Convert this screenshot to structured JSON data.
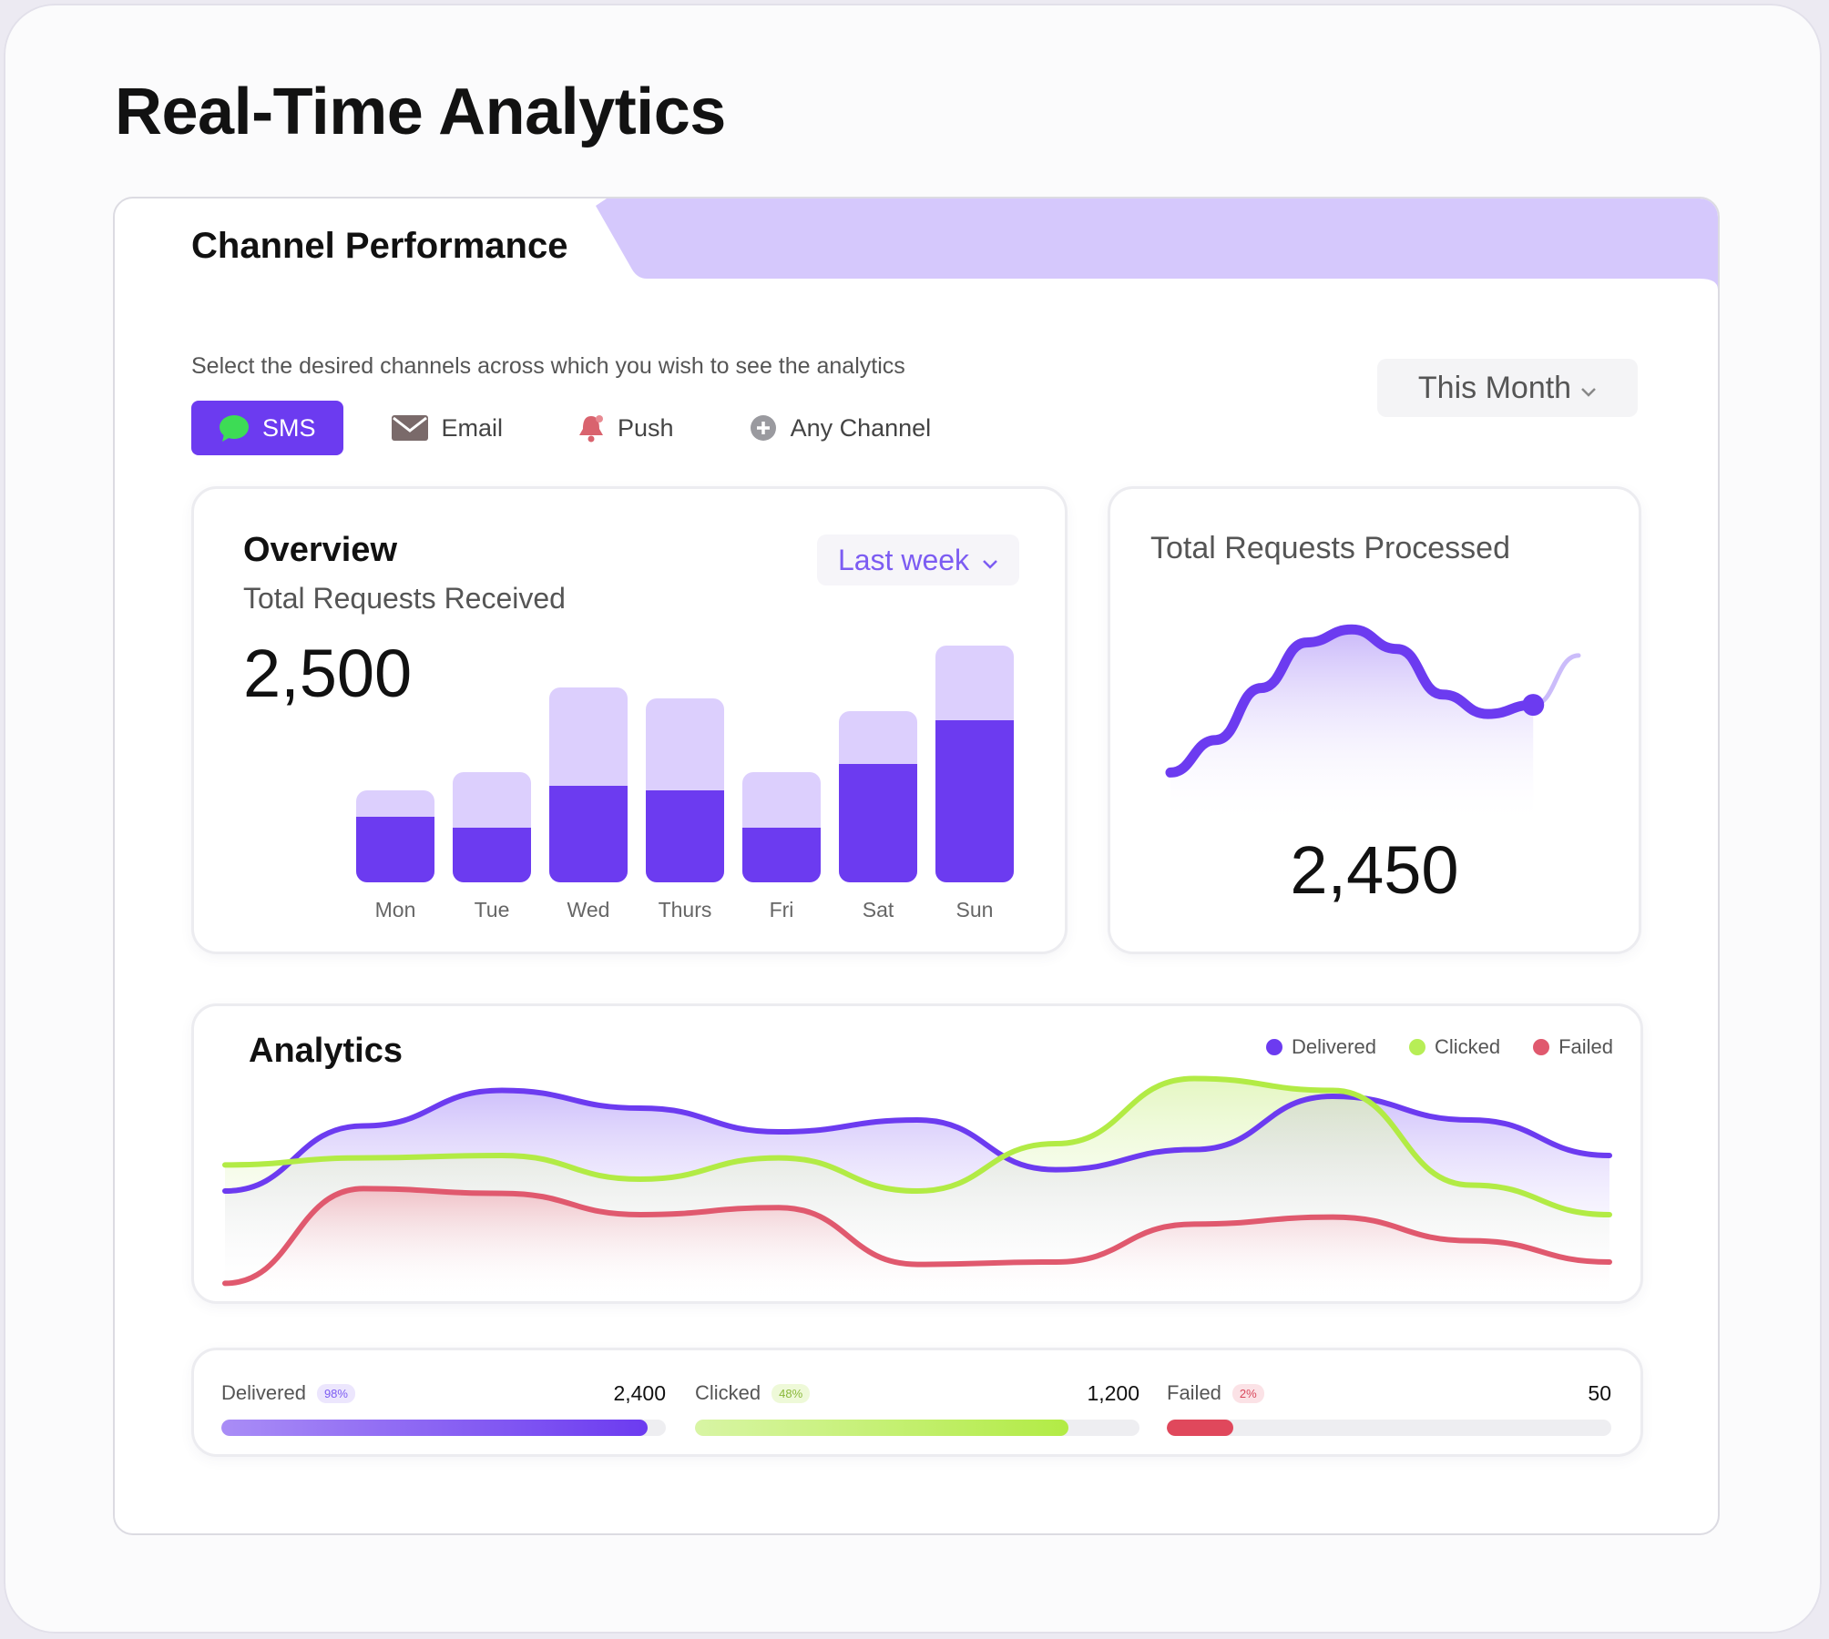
{
  "page_title": "Real-Time Analytics",
  "panel": {
    "tab_title": "Channel Performance",
    "subtitle": "Select the desired channels across which you wish to see the analytics",
    "period_label": "This Month"
  },
  "channels": [
    {
      "label": "SMS",
      "icon": "chat-bubble-icon",
      "active": true
    },
    {
      "label": "Email",
      "icon": "envelope-icon",
      "active": false
    },
    {
      "label": "Push",
      "icon": "bell-icon",
      "active": false
    },
    {
      "label": "Any Channel",
      "icon": "plus-circle-icon",
      "active": false
    }
  ],
  "overview": {
    "title": "Overview",
    "subtitle": "Total Requests Received",
    "total": "2,500",
    "range_label": "Last week"
  },
  "processed": {
    "title": "Total Requests Processed",
    "total": "2,450"
  },
  "analytics": {
    "title": "Analytics",
    "legend": [
      "Delivered",
      "Clicked",
      "Failed"
    ]
  },
  "stats": [
    {
      "label": "Delivered",
      "percent": "98%",
      "value": "2,400"
    },
    {
      "label": "Clicked",
      "percent": "48%",
      "value": "1,200"
    },
    {
      "label": "Failed",
      "percent": "2%",
      "value": "50"
    }
  ],
  "colors": {
    "accent": "#6c3bf0",
    "accent_light": "#dccffd",
    "tab": "#d5c8fc",
    "clicked": "#b7ee56",
    "failed": "#e0596e"
  },
  "chart_data": [
    {
      "type": "bar",
      "categories": [
        "Mon",
        "Tue",
        "Wed",
        "Thurs",
        "Fri",
        "Sat",
        "Sun"
      ],
      "series": [
        {
          "values": [
            72,
            60,
            106,
            101,
            60,
            130,
            178
          ]
        },
        {
          "values": [
            101,
            121,
            214,
            202,
            121,
            188,
            260
          ]
        }
      ],
      "ylim": [
        0,
        260
      ]
    },
    {
      "type": "line",
      "x": [
        0,
        1,
        2,
        3,
        4,
        5,
        6,
        7,
        8,
        9
      ],
      "series": [
        {
          "values": [
            20,
            45,
            85,
            120,
            130,
            115,
            80,
            65,
            72,
            110
          ]
        }
      ],
      "ylim": [
        0,
        140
      ]
    },
    {
      "type": "area",
      "x": [
        0,
        1,
        2,
        3,
        4,
        5,
        6,
        7,
        8,
        9,
        10
      ],
      "series": [
        {
          "name": "Delivered",
          "values": [
            90,
            145,
            175,
            160,
            140,
            150,
            108,
            125,
            170,
            150,
            120
          ]
        },
        {
          "name": "Clicked",
          "values": [
            112,
            118,
            120,
            100,
            118,
            90,
            130,
            185,
            175,
            95,
            70
          ]
        },
        {
          "name": "Failed",
          "values": [
            12,
            92,
            88,
            70,
            76,
            28,
            30,
            62,
            68,
            48,
            30
          ]
        }
      ],
      "ylim": [
        0,
        200
      ]
    },
    {
      "type": "bar",
      "categories": [
        "Delivered",
        "Clicked",
        "Failed"
      ],
      "values": [
        0.96,
        0.84,
        0.15
      ],
      "ylim": [
        0,
        1
      ]
    }
  ]
}
